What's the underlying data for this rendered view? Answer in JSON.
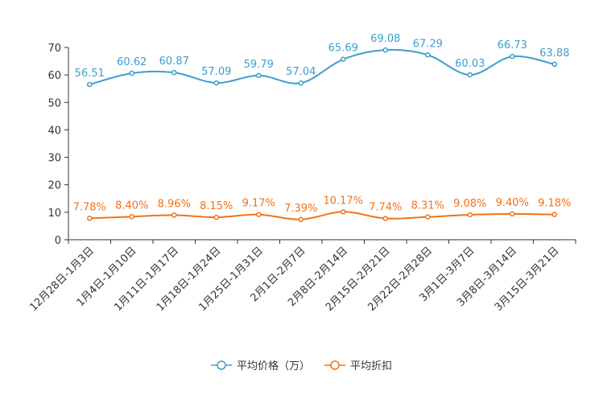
{
  "chart_data": {
    "type": "line",
    "categories": [
      "12月28日-1月3日",
      "1月4日-1月10日",
      "1月11日-1月17日",
      "1月18日-1月24日",
      "1月25日-1月31日",
      "2月1日-2月7日",
      "2月8日-2月14日",
      "2月15日-2月21日",
      "2月22日-2月28日",
      "3月1日-3月7日",
      "3月8日-3月14日",
      "3月15日-3月21日"
    ],
    "ylim": [
      0,
      70
    ],
    "yticks": [
      0,
      10,
      20,
      30,
      40,
      50,
      60,
      70
    ],
    "series": [
      {
        "name": "平均价格（万）",
        "color": "#3a9fcf",
        "values": [
          56.51,
          60.62,
          60.87,
          57.09,
          59.79,
          57.04,
          65.69,
          69.08,
          67.29,
          60.03,
          66.73,
          63.88
        ],
        "labels": [
          "56.51",
          "60.62",
          "60.87",
          "57.09",
          "59.79",
          "57.04",
          "65.69",
          "69.08",
          "67.29",
          "60.03",
          "66.73",
          "63.88"
        ]
      },
      {
        "name": "平均折扣",
        "color": "#f07318",
        "values": [
          7.78,
          8.4,
          8.96,
          8.15,
          9.17,
          7.39,
          10.17,
          7.74,
          8.31,
          9.08,
          9.4,
          9.18
        ],
        "labels": [
          "7.78%",
          "8.40%",
          "8.96%",
          "8.15%",
          "9.17%",
          "7.39%",
          "10.17%",
          "7.74%",
          "8.31%",
          "9.08%",
          "9.40%",
          "9.18%"
        ]
      }
    ]
  }
}
